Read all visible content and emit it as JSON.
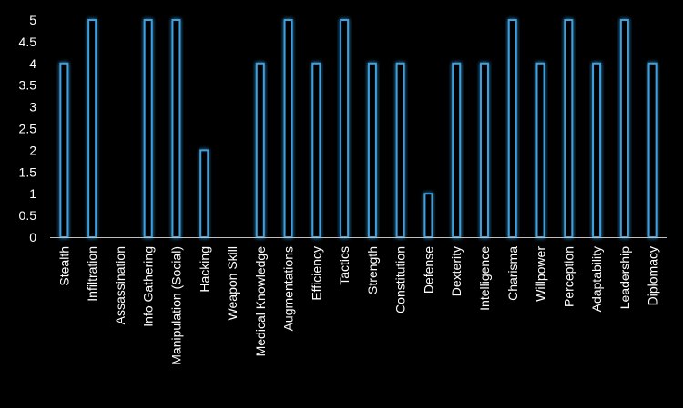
{
  "theme": {
    "background": "#000000",
    "bar_stroke": "#3ea0e0",
    "bar_glow": "#1b5a88",
    "bar_fill": "#000000",
    "axis_color": "#bfbfbf",
    "text_color": "#ffffff"
  },
  "chart_data": {
    "type": "bar",
    "title": "",
    "xlabel": "",
    "ylabel": "",
    "ylim": [
      0,
      5
    ],
    "yticks": [
      "0",
      "0.5",
      "1",
      "1.5",
      "2",
      "2.5",
      "3",
      "3.5",
      "4",
      "4.5",
      "5"
    ],
    "grid": false,
    "legend": "none",
    "categories": [
      "Stealth",
      "Infiltration",
      "Assassination",
      "Info Gathering",
      "Manipulation (Social)",
      "Hacking",
      "Weapon Skill",
      "Medical Knowledge",
      "Augmentations",
      "Efficiency",
      "Tactics",
      "Strength",
      "Constitution",
      "Defense",
      "Dexterity",
      "Intelligence",
      "Charisma",
      "Willpower",
      "Perception",
      "Adaptability",
      "Leadership",
      "Diplomacy"
    ],
    "values": [
      4,
      5,
      0,
      5,
      5,
      2,
      0,
      4,
      5,
      4,
      5,
      4,
      4,
      1,
      4,
      4,
      5,
      4,
      5,
      4,
      5,
      4
    ]
  }
}
